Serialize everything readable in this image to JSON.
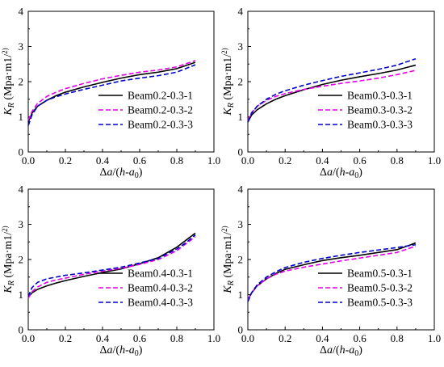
{
  "chart_data": [
    {
      "type": "line",
      "xlabel": "Δa/(h-a0)",
      "ylabel": "KR (Mpa·m1/2)",
      "xlim": [
        0,
        1
      ],
      "ylim": [
        0,
        4
      ],
      "xticks": [
        "0.0",
        "0.2",
        "0.4",
        "0.6",
        "0.8",
        "1.0"
      ],
      "yticks": [
        "0",
        "1",
        "2",
        "3",
        "4"
      ],
      "legend": "lower-right",
      "series": [
        {
          "name": "Beam0.2-0.3-1",
          "color": "#000000",
          "dash": "solid",
          "x": [
            0,
            0.02,
            0.05,
            0.1,
            0.15,
            0.2,
            0.3,
            0.4,
            0.5,
            0.6,
            0.7,
            0.8,
            0.9
          ],
          "y": [
            0.85,
            1.1,
            1.3,
            1.47,
            1.6,
            1.7,
            1.85,
            1.98,
            2.1,
            2.2,
            2.27,
            2.37,
            2.55
          ]
        },
        {
          "name": "Beam0.2-0.3-2",
          "color": "#e600e6",
          "dash": "dash",
          "x": [
            0,
            0.02,
            0.05,
            0.1,
            0.15,
            0.2,
            0.3,
            0.4,
            0.5,
            0.6,
            0.7,
            0.8,
            0.9
          ],
          "y": [
            0.9,
            1.15,
            1.38,
            1.58,
            1.7,
            1.8,
            1.95,
            2.08,
            2.18,
            2.27,
            2.33,
            2.42,
            2.6
          ]
        },
        {
          "name": "Beam0.2-0.3-3",
          "color": "#0000cc",
          "dash": "dash",
          "x": [
            0,
            0.02,
            0.05,
            0.1,
            0.15,
            0.2,
            0.3,
            0.4,
            0.5,
            0.6,
            0.7,
            0.8,
            0.9
          ],
          "y": [
            0.75,
            1.05,
            1.3,
            1.47,
            1.57,
            1.65,
            1.78,
            1.9,
            2.02,
            2.1,
            2.17,
            2.27,
            2.48
          ]
        }
      ]
    },
    {
      "type": "line",
      "xlabel": "Δa/(h-a0)",
      "ylabel": "KR (Mpa·m1/2)",
      "xlim": [
        0,
        1
      ],
      "ylim": [
        0,
        4
      ],
      "xticks": [
        "0.0",
        "0.2",
        "0.4",
        "0.6",
        "0.8",
        "1.0"
      ],
      "yticks": [
        "0",
        "1",
        "2",
        "3",
        "4"
      ],
      "legend": "lower-right",
      "series": [
        {
          "name": "Beam0.3-0.3-1",
          "color": "#000000",
          "dash": "solid",
          "x": [
            0,
            0.02,
            0.05,
            0.1,
            0.15,
            0.2,
            0.3,
            0.4,
            0.5,
            0.6,
            0.7,
            0.8,
            0.9
          ],
          "y": [
            0.85,
            1.05,
            1.2,
            1.37,
            1.5,
            1.6,
            1.77,
            1.92,
            2.04,
            2.14,
            2.23,
            2.33,
            2.47
          ]
        },
        {
          "name": "Beam0.3-0.3-2",
          "color": "#e600e6",
          "dash": "dash",
          "x": [
            0,
            0.02,
            0.05,
            0.1,
            0.15,
            0.2,
            0.3,
            0.4,
            0.5,
            0.6,
            0.7,
            0.8,
            0.9
          ],
          "y": [
            0.9,
            1.12,
            1.3,
            1.47,
            1.58,
            1.66,
            1.78,
            1.87,
            1.95,
            2.02,
            2.1,
            2.2,
            2.32
          ]
        },
        {
          "name": "Beam0.3-0.3-3",
          "color": "#0000cc",
          "dash": "dash",
          "x": [
            0,
            0.02,
            0.05,
            0.1,
            0.15,
            0.2,
            0.3,
            0.4,
            0.5,
            0.6,
            0.7,
            0.8,
            0.9
          ],
          "y": [
            0.85,
            1.1,
            1.3,
            1.5,
            1.64,
            1.74,
            1.9,
            2.03,
            2.15,
            2.25,
            2.35,
            2.47,
            2.65
          ]
        }
      ]
    },
    {
      "type": "line",
      "xlabel": "Δa/(h-a0)",
      "ylabel": "KR (Mpa·m1/2)",
      "xlim": [
        0,
        1
      ],
      "ylim": [
        0,
        4
      ],
      "xticks": [
        "0.0",
        "0.2",
        "0.4",
        "0.6",
        "0.8",
        "1.0"
      ],
      "yticks": [
        "0",
        "1",
        "2",
        "3",
        "4"
      ],
      "legend": "lower-right",
      "series": [
        {
          "name": "Beam0.4-0.3-1",
          "color": "#000000",
          "dash": "solid",
          "x": [
            0,
            0.02,
            0.05,
            0.1,
            0.15,
            0.2,
            0.3,
            0.4,
            0.5,
            0.6,
            0.7,
            0.8,
            0.85,
            0.9
          ],
          "y": [
            0.95,
            1.05,
            1.15,
            1.25,
            1.33,
            1.4,
            1.52,
            1.63,
            1.73,
            1.88,
            2.05,
            2.35,
            2.55,
            2.75
          ]
        },
        {
          "name": "Beam0.4-0.3-2",
          "color": "#e600e6",
          "dash": "dash",
          "x": [
            0,
            0.02,
            0.05,
            0.1,
            0.15,
            0.2,
            0.3,
            0.4,
            0.5,
            0.6,
            0.7,
            0.8,
            0.85,
            0.9
          ],
          "y": [
            0.9,
            1.08,
            1.22,
            1.35,
            1.42,
            1.47,
            1.58,
            1.67,
            1.75,
            1.86,
            2.0,
            2.25,
            2.45,
            2.65
          ]
        },
        {
          "name": "Beam0.4-0.3-3",
          "color": "#0000cc",
          "dash": "dash",
          "x": [
            0,
            0.02,
            0.05,
            0.1,
            0.15,
            0.2,
            0.3,
            0.4,
            0.5,
            0.6,
            0.7,
            0.8,
            0.85,
            0.9
          ],
          "y": [
            0.95,
            1.2,
            1.35,
            1.45,
            1.5,
            1.55,
            1.62,
            1.7,
            1.78,
            1.9,
            2.03,
            2.3,
            2.48,
            2.7
          ]
        }
      ]
    },
    {
      "type": "line",
      "xlabel": "Δa/(h-a0)",
      "ylabel": "KR (Mpa·m1/2)",
      "xlim": [
        0,
        1
      ],
      "ylim": [
        0,
        4
      ],
      "xticks": [
        "0.0",
        "0.2",
        "0.4",
        "0.6",
        "0.8",
        "1.0"
      ],
      "yticks": [
        "0",
        "1",
        "2",
        "3",
        "4"
      ],
      "legend": "lower-right",
      "series": [
        {
          "name": "Beam0.5-0.3-1",
          "color": "#000000",
          "dash": "solid",
          "x": [
            0,
            0.02,
            0.05,
            0.1,
            0.15,
            0.2,
            0.3,
            0.4,
            0.5,
            0.6,
            0.7,
            0.8,
            0.9
          ],
          "y": [
            0.85,
            1.05,
            1.25,
            1.45,
            1.6,
            1.72,
            1.85,
            1.97,
            2.05,
            2.12,
            2.2,
            2.28,
            2.47
          ]
        },
        {
          "name": "Beam0.5-0.3-2",
          "color": "#e600e6",
          "dash": "dash",
          "x": [
            0,
            0.02,
            0.05,
            0.1,
            0.15,
            0.2,
            0.3,
            0.4,
            0.5,
            0.6,
            0.7,
            0.8,
            0.9
          ],
          "y": [
            0.85,
            1.05,
            1.25,
            1.45,
            1.58,
            1.67,
            1.78,
            1.87,
            1.96,
            2.04,
            2.12,
            2.2,
            2.38
          ]
        },
        {
          "name": "Beam0.5-0.3-3",
          "color": "#0000cc",
          "dash": "dash",
          "x": [
            0,
            0.02,
            0.05,
            0.1,
            0.15,
            0.2,
            0.3,
            0.4,
            0.5,
            0.6,
            0.7,
            0.8,
            0.9
          ],
          "y": [
            0.8,
            1.05,
            1.28,
            1.5,
            1.65,
            1.77,
            1.92,
            2.03,
            2.12,
            2.2,
            2.27,
            2.34,
            2.42
          ]
        }
      ]
    }
  ]
}
